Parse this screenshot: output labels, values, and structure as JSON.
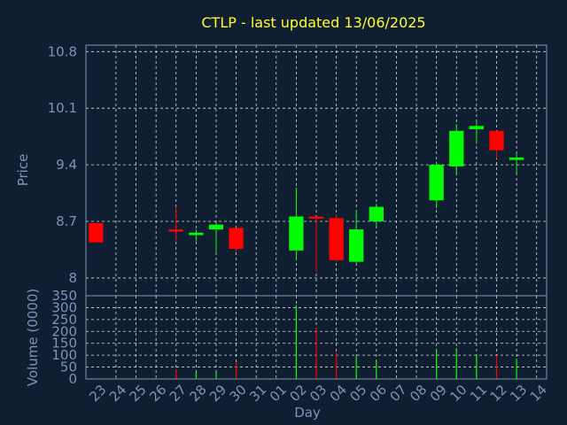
{
  "chart_data": {
    "type": "candlestick",
    "title": "CTLP - last updated 13/06/2025",
    "xlabel": "Day",
    "price_panel": {
      "ylabel": "Price",
      "ylim": [
        7.78,
        10.88
      ],
      "yticks": [
        "8",
        "8.7",
        "9.4",
        "10.1",
        "10.8"
      ]
    },
    "volume_panel": {
      "ylabel": "Volume (0000)",
      "ylim": [
        0,
        350
      ],
      "yticks": [
        "0",
        "50",
        "100",
        "150",
        "200",
        "250",
        "300",
        "350"
      ]
    },
    "x_labels": [
      "23",
      "24",
      "25",
      "26",
      "27",
      "28",
      "29",
      "30",
      "31",
      "01",
      "02",
      "03",
      "04",
      "05",
      "06",
      "07",
      "08",
      "09",
      "10",
      "11",
      "12",
      "13",
      "14"
    ],
    "colors": {
      "up": "#00ff00",
      "down": "#ff0000",
      "background": "#0f1e30",
      "title": "#ffff33",
      "axis": "#7e95b8",
      "grid": "#ffffff"
    },
    "candles": [
      {
        "day": "23",
        "open": 8.68,
        "high": 8.68,
        "low": 8.44,
        "close": 8.44,
        "volume": 0
      },
      {
        "day": "27",
        "open": 8.6,
        "high": 8.88,
        "low": 8.45,
        "close": 8.58,
        "volume": 40
      },
      {
        "day": "28",
        "open": 8.53,
        "high": 8.6,
        "low": 8.45,
        "close": 8.56,
        "volume": 30
      },
      {
        "day": "29",
        "open": 8.6,
        "high": 8.68,
        "low": 8.32,
        "close": 8.66,
        "volume": 30
      },
      {
        "day": "30",
        "open": 8.62,
        "high": 8.62,
        "low": 8.33,
        "close": 8.36,
        "volume": 70
      },
      {
        "day": "02",
        "open": 8.34,
        "high": 9.12,
        "low": 8.22,
        "close": 8.76,
        "volume": 310
      },
      {
        "day": "03",
        "open": 8.76,
        "high": 8.76,
        "low": 8.08,
        "close": 8.74,
        "volume": 215
      },
      {
        "day": "04",
        "open": 8.74,
        "high": 8.78,
        "low": 8.2,
        "close": 8.22,
        "volume": 110
      },
      {
        "day": "05",
        "open": 8.2,
        "high": 8.84,
        "low": 8.18,
        "close": 8.6,
        "volume": 95
      },
      {
        "day": "06",
        "open": 8.7,
        "high": 8.92,
        "low": 8.63,
        "close": 8.88,
        "volume": 75
      },
      {
        "day": "09",
        "open": 8.96,
        "high": 9.44,
        "low": 8.86,
        "close": 9.4,
        "volume": 125
      },
      {
        "day": "10",
        "open": 9.38,
        "high": 9.9,
        "low": 9.28,
        "close": 9.82,
        "volume": 130
      },
      {
        "day": "11",
        "open": 9.84,
        "high": 9.94,
        "low": 9.66,
        "close": 9.88,
        "volume": 100
      },
      {
        "day": "12",
        "open": 9.82,
        "high": 9.82,
        "low": 9.48,
        "close": 9.58,
        "volume": 100
      },
      {
        "day": "13",
        "open": 9.46,
        "high": 9.54,
        "low": 9.3,
        "close": 9.49,
        "volume": 85
      }
    ]
  }
}
